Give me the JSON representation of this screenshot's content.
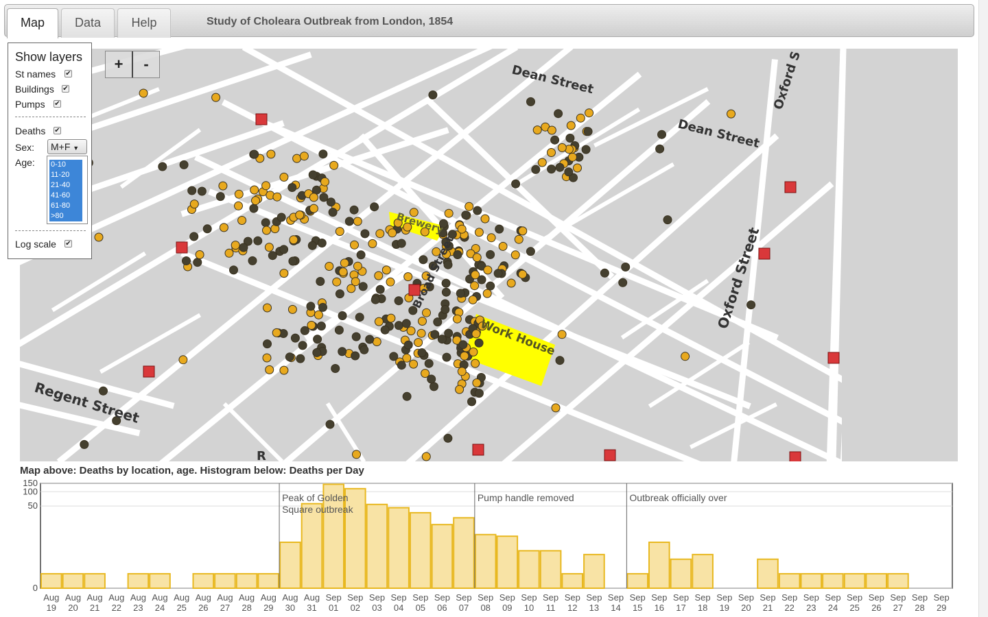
{
  "tabs": [
    {
      "label": "Map",
      "active": true
    },
    {
      "label": "Data",
      "active": false
    },
    {
      "label": "Help",
      "active": false
    }
  ],
  "app_title": "Study of Choleara Outbreak from London, 1854",
  "zoom": {
    "in": "+",
    "out": "-"
  },
  "layers": {
    "title": "Show layers",
    "st_names": "St names",
    "buildings": "Buildings",
    "pumps": "Pumps",
    "deaths": "Deaths",
    "sex_label": "Sex:",
    "sex_value": "M+F",
    "age_label": "Age:",
    "age_options": [
      "0-10",
      "11-20",
      "21-40",
      "41-60",
      "61-80",
      ">80"
    ],
    "log_scale": "Log scale",
    "checked_mark": "✔"
  },
  "map": {
    "street_labels": [
      "Dean Street",
      "Dean Street",
      "Oxford S",
      "Oxford Street",
      "Regent Street",
      "Broad Street",
      "R"
    ],
    "building_labels": [
      "Brewery",
      "Work House"
    ],
    "colors": {
      "street": "#ffffff",
      "background": "#d3d3d3",
      "pump": "#d9383a",
      "building": "#ffff00",
      "death_light": "#e8a91e",
      "death_dark": "#45402f"
    }
  },
  "caption": "Map above: Deaths by location, age. Histogram below: Deaths per Day",
  "chart_data": {
    "type": "bar",
    "title": "",
    "xlabel": "",
    "ylabel": "",
    "log_scale": true,
    "y_ticks": [
      "150",
      "100",
      "50",
      "0"
    ],
    "categories": [
      "Aug 19",
      "Aug 20",
      "Aug 21",
      "Aug 22",
      "Aug 23",
      "Aug 24",
      "Aug 25",
      "Aug 26",
      "Aug 27",
      "Aug 28",
      "Aug 29",
      "Aug 30",
      "Aug 31",
      "Sep 01",
      "Sep 02",
      "Sep 03",
      "Sep 04",
      "Sep 05",
      "Sep 06",
      "Sep 07",
      "Sep 08",
      "Sep 09",
      "Sep 10",
      "Sep 11",
      "Sep 12",
      "Sep 13",
      "Sep 14",
      "Sep 15",
      "Sep 16",
      "Sep 17",
      "Sep 18",
      "Sep 19",
      "Sep 20",
      "Sep 21",
      "Sep 22",
      "Sep 23",
      "Sep 24",
      "Sep 25",
      "Sep 26",
      "Sep 27",
      "Sep 28",
      "Sep 29"
    ],
    "values": [
      1,
      1,
      1,
      0,
      1,
      1,
      0,
      1,
      1,
      1,
      1,
      8,
      56,
      143,
      116,
      54,
      46,
      36,
      20,
      28,
      12,
      11,
      5,
      5,
      1,
      4,
      0,
      1,
      8,
      3,
      4,
      0,
      0,
      3,
      1,
      1,
      1,
      1,
      1,
      1,
      0,
      0
    ],
    "annotations": [
      {
        "label": "Peak of Golden Square outbreak",
        "line1": "Peak of Golden",
        "line2": "Square outbreak",
        "at": "Aug 30"
      },
      {
        "label": "Pump handle removed",
        "at": "Sep 08"
      },
      {
        "label": "Outbreak officially over",
        "at": "Sep 15"
      }
    ],
    "colors": {
      "bar_fill": "#f8e3a5",
      "bar_stroke": "#e8b820"
    }
  }
}
